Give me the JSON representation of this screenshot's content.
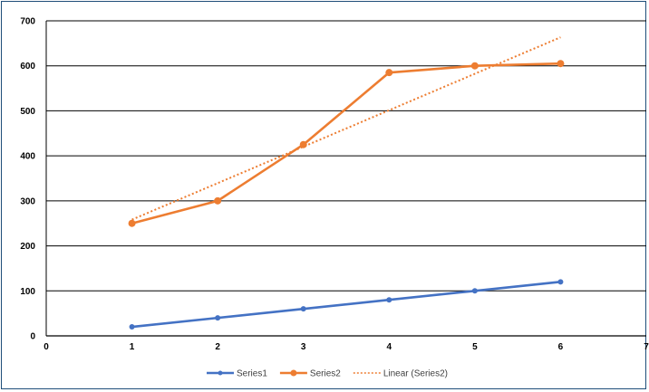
{
  "chart_data": {
    "type": "scatter",
    "x_ticks": [
      0,
      1,
      2,
      3,
      4,
      5,
      6,
      7
    ],
    "y_ticks": [
      0,
      100,
      200,
      300,
      400,
      500,
      600,
      700
    ],
    "xlim": [
      0,
      7
    ],
    "ylim": [
      0,
      700
    ],
    "grid": "horizontal",
    "legend_position": "bottom",
    "series": [
      {
        "name": "Series1",
        "color": "#4472c4",
        "style": "line-markers",
        "x": [
          1,
          2,
          3,
          4,
          5,
          6
        ],
        "y": [
          20,
          40,
          60,
          80,
          100,
          120
        ]
      },
      {
        "name": "Series2",
        "color": "#ed7d31",
        "style": "line-markers",
        "x": [
          1,
          2,
          3,
          4,
          5,
          6
        ],
        "y": [
          250,
          300,
          425,
          585,
          600,
          605
        ]
      }
    ],
    "trendline": {
      "name": "Linear (Series2)",
      "color": "#ed7d31",
      "of": "Series2",
      "type": "linear"
    }
  }
}
